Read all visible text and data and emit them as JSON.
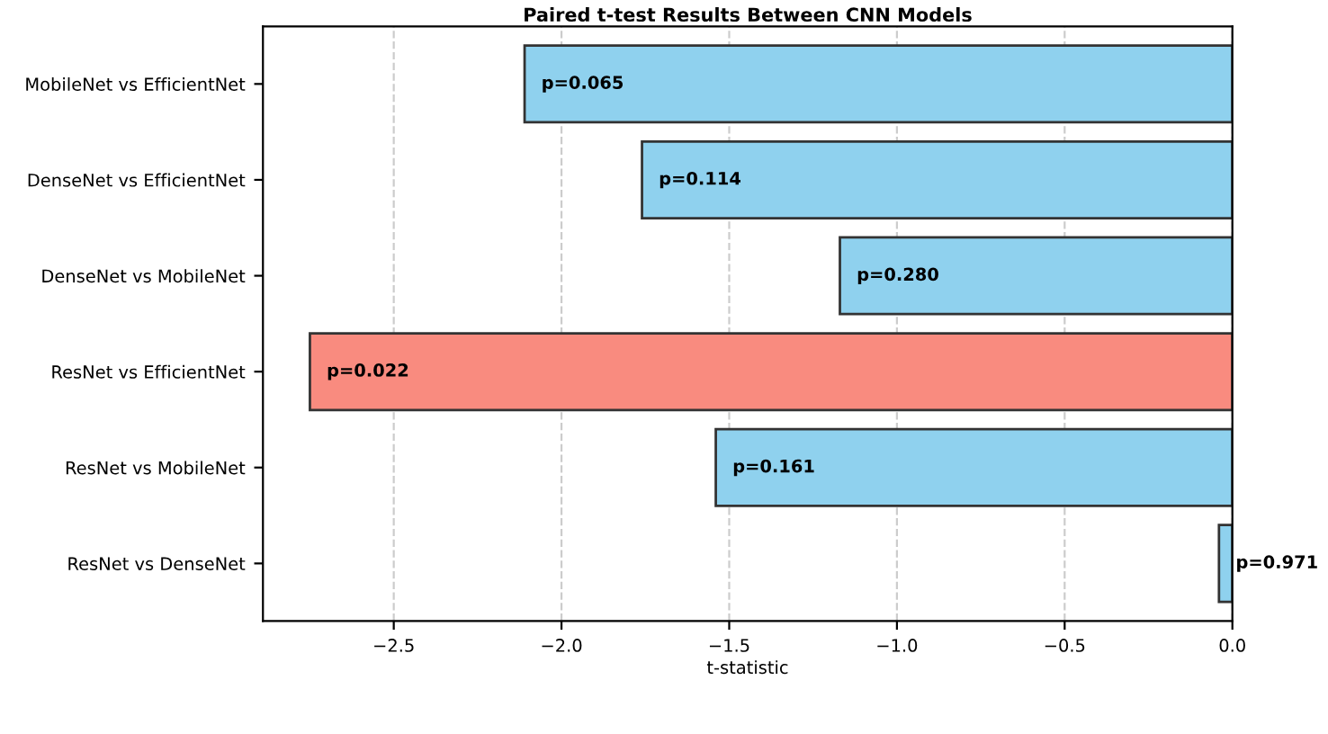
{
  "chart_data": {
    "type": "bar",
    "orientation": "horizontal",
    "title": "Paired t-test Results Between CNN Models",
    "xlabel": "t-statistic",
    "categories": [
      "MobileNet vs EfficientNet",
      "DenseNet vs EfficientNet",
      "DenseNet vs MobileNet",
      "ResNet vs EfficientNet",
      "ResNet vs MobileNet",
      "ResNet vs DenseNet"
    ],
    "values": [
      -2.11,
      -1.76,
      -1.17,
      -2.75,
      -1.54,
      -0.04
    ],
    "colors": [
      "#8fd1ee",
      "#8fd1ee",
      "#8fd1ee",
      "#f98b7f",
      "#8fd1ee",
      "#8fd1ee"
    ],
    "annotations": [
      {
        "text": "p=0.065",
        "x": -2.11,
        "y": "MobileNet vs EfficientNet"
      },
      {
        "text": "p=0.114",
        "x": -1.76,
        "y": "DenseNet vs EfficientNet"
      },
      {
        "text": "p=0.280",
        "x": -1.17,
        "y": "DenseNet vs MobileNet"
      },
      {
        "text": "p=0.022",
        "x": -2.75,
        "y": "ResNet vs EfficientNet"
      },
      {
        "text": "p=0.161",
        "x": -1.54,
        "y": "ResNet vs MobileNet"
      },
      {
        "text": "p=0.971",
        "x": -0.04,
        "y": "ResNet vs DenseNet"
      }
    ],
    "xlim": [
      -2.89,
      0.0
    ],
    "xticks": [
      {
        "value": -2.5,
        "label": "−2.5"
      },
      {
        "value": -2.0,
        "label": "−2.0"
      },
      {
        "value": -1.5,
        "label": "−1.5"
      },
      {
        "value": -1.0,
        "label": "−1.0"
      },
      {
        "value": -0.5,
        "label": "−0.5"
      },
      {
        "value": 0.0,
        "label": "0.0"
      }
    ],
    "grid": "x",
    "line_style": "dashed"
  }
}
